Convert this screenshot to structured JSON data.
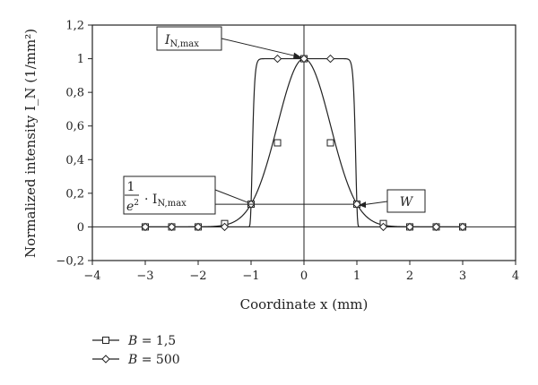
{
  "chart_data": {
    "type": "line",
    "title": "",
    "xlabel": "Coordinate x (mm)",
    "ylabel": "Normalized intensity I_N (1/mm²)",
    "xlim": [
      -4,
      4
    ],
    "ylim": [
      -0.2,
      1.2
    ],
    "x_ticks": [
      -4,
      -3,
      -2,
      -1,
      0,
      1,
      2,
      3,
      4
    ],
    "y_ticks": [
      -0.2,
      0,
      0.2,
      0.4,
      0.6,
      0.8,
      1,
      1.2
    ],
    "x_tick_labels": [
      "−4",
      "−3",
      "−2",
      "−1",
      "0",
      "1",
      "2",
      "3",
      "4"
    ],
    "y_tick_labels": [
      "−0,2",
      "0",
      "0,2",
      "0,4",
      "0,6",
      "0,8",
      "1",
      "1,2"
    ],
    "grid": false,
    "series": [
      {
        "name": "B = 1,5",
        "marker": "square",
        "x": [
          -3,
          -2.5,
          -2,
          -1.5,
          -1,
          -0.5,
          0,
          0.5,
          1,
          1.5,
          2,
          2.5,
          3
        ],
        "y": [
          0,
          0,
          0,
          0.02,
          0.135,
          0.5,
          1,
          0.5,
          0.135,
          0.02,
          0,
          0,
          0
        ]
      },
      {
        "name": "B = 500",
        "marker": "diamond",
        "x": [
          -3,
          -2.5,
          -2,
          -1.5,
          -1,
          -0.5,
          0,
          0.5,
          1,
          1.5,
          2,
          2.5,
          3
        ],
        "y": [
          0,
          0,
          0,
          0,
          0.135,
          1,
          1,
          1,
          0.135,
          0,
          0,
          0,
          0
        ]
      }
    ],
    "annotations": {
      "imax_label": "I",
      "imax_sub": "N,max",
      "w_label": "W",
      "frac_num": "1",
      "frac_den": "e",
      "frac_den_sup": "2",
      "frac_tail": "· I",
      "frac_tail_sub": "N,max"
    },
    "legend_position": "bottom-left"
  }
}
